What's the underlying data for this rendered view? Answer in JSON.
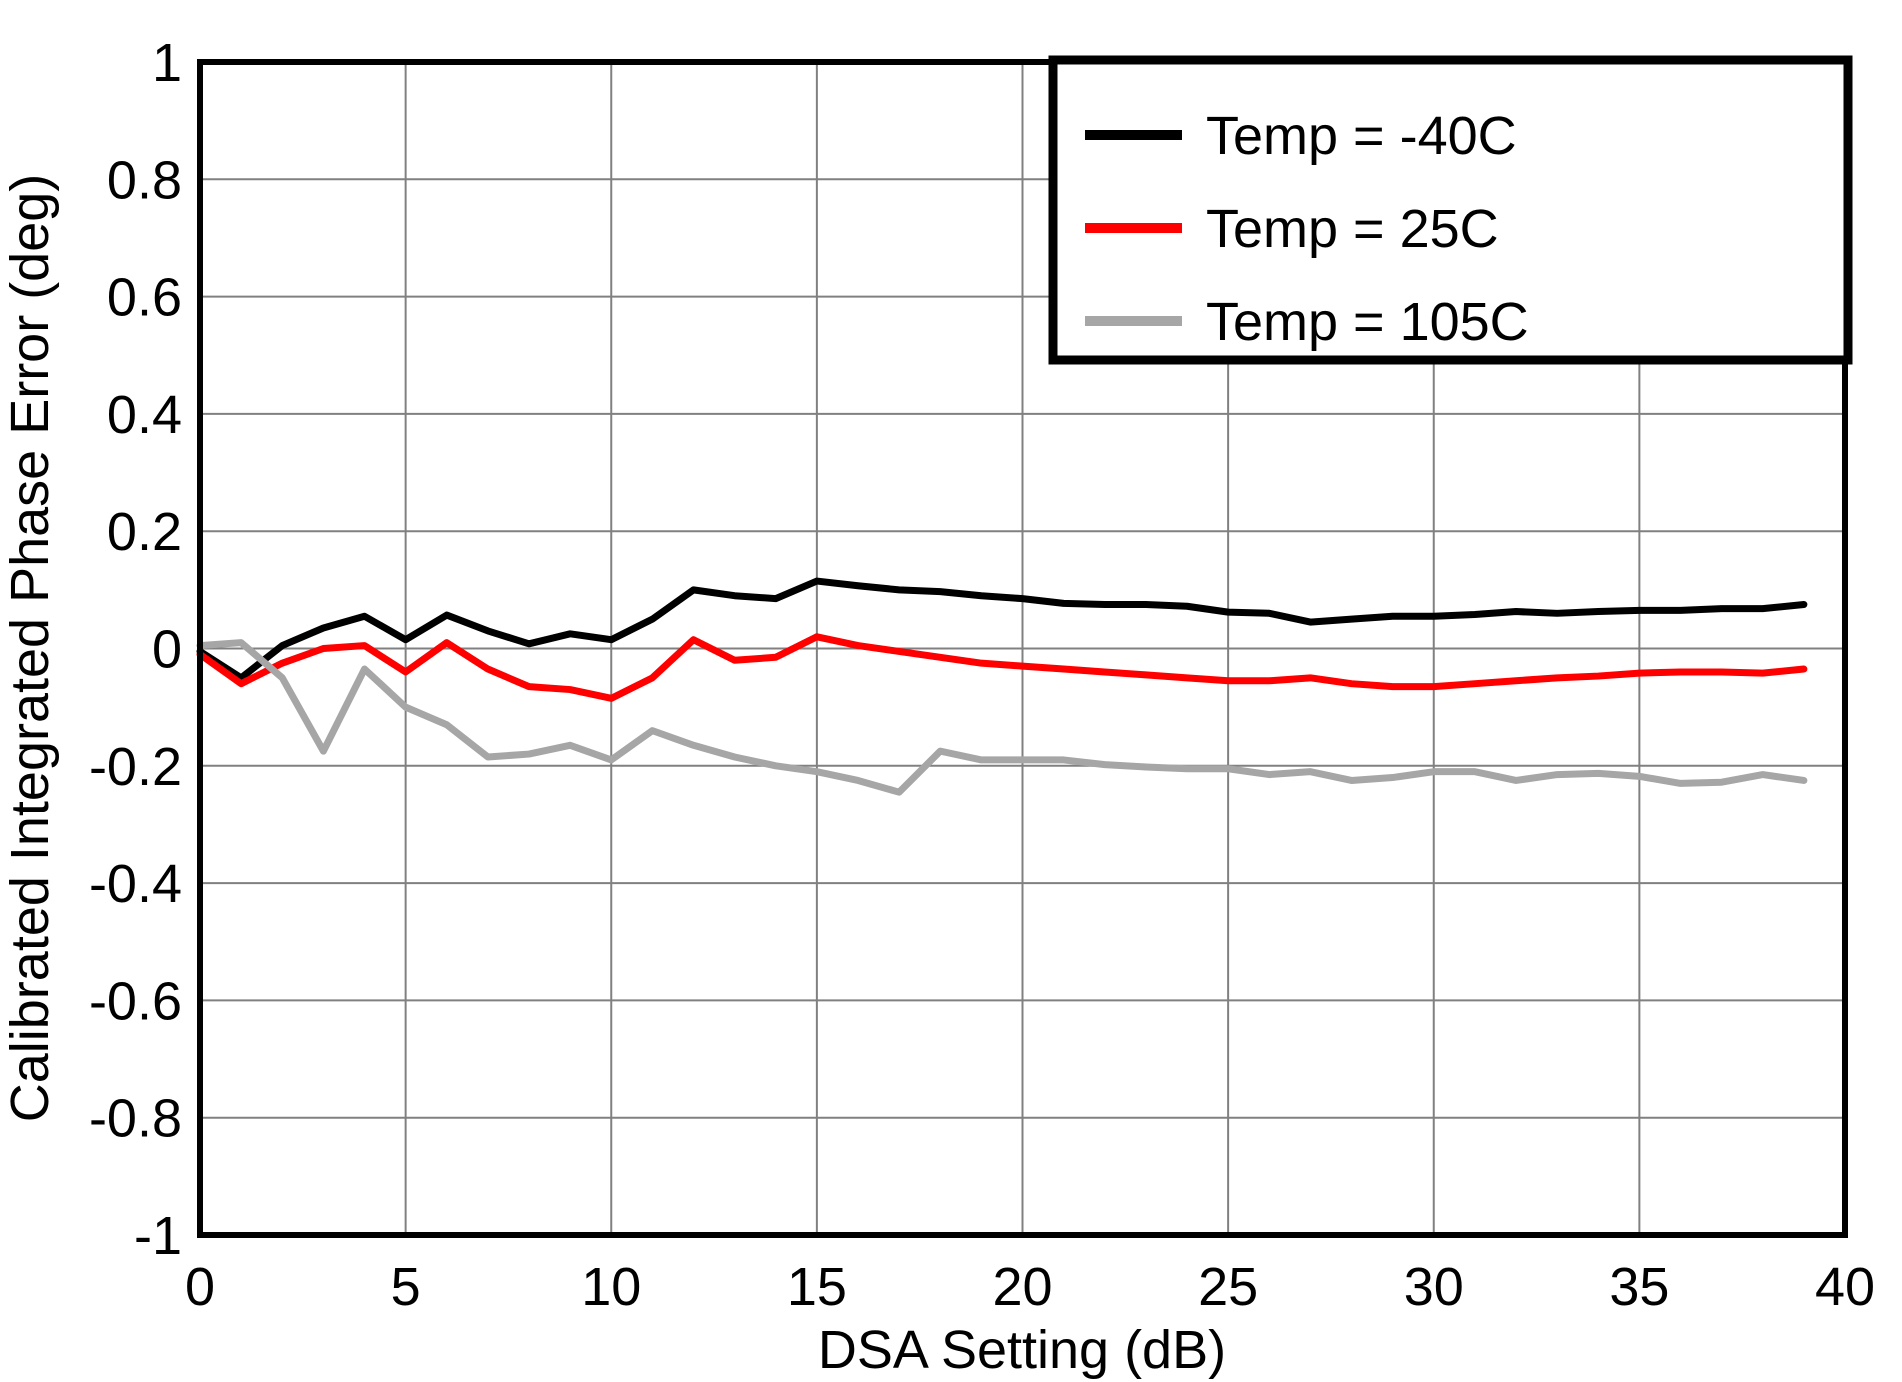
{
  "chart_data": {
    "type": "line",
    "title": "",
    "xlabel": "DSA Setting (dB)",
    "ylabel": "Calibrated Integrated Phase Error (deg)",
    "xlim": [
      0,
      40
    ],
    "ylim": [
      -1,
      1
    ],
    "xticks": [
      0,
      5,
      10,
      15,
      20,
      25,
      30,
      35,
      40
    ],
    "yticks": [
      -1,
      -0.8,
      -0.6,
      -0.4,
      -0.2,
      0,
      0.2,
      0.4,
      0.6,
      0.8,
      1
    ],
    "grid": true,
    "grid_color": "#808080",
    "border_color": "#000000",
    "legend_position": "top-right",
    "x": [
      0,
      1,
      2,
      3,
      4,
      5,
      6,
      7,
      8,
      9,
      10,
      11,
      12,
      13,
      14,
      15,
      16,
      17,
      18,
      19,
      20,
      21,
      22,
      23,
      24,
      25,
      26,
      27,
      28,
      29,
      30,
      31,
      32,
      33,
      34,
      35,
      36,
      37,
      38,
      39
    ],
    "series": [
      {
        "name": "Temp = -40C",
        "color": "#000000",
        "values": [
          -0.005,
          -0.05,
          0.005,
          0.035,
          0.055,
          0.015,
          0.057,
          0.03,
          0.008,
          0.025,
          0.015,
          0.05,
          0.1,
          0.09,
          0.085,
          0.115,
          0.107,
          0.1,
          0.097,
          0.09,
          0.085,
          0.077,
          0.075,
          0.075,
          0.072,
          0.062,
          0.06,
          0.045,
          0.05,
          0.055,
          0.055,
          0.058,
          0.063,
          0.06,
          0.063,
          0.065,
          0.065,
          0.068,
          0.068,
          0.075
        ]
      },
      {
        "name": "Temp = 25C",
        "color": "#ff0000",
        "values": [
          -0.01,
          -0.06,
          -0.025,
          0.0,
          0.005,
          -0.04,
          0.01,
          -0.035,
          -0.065,
          -0.07,
          -0.085,
          -0.05,
          0.015,
          -0.02,
          -0.015,
          0.02,
          0.005,
          -0.005,
          -0.015,
          -0.025,
          -0.03,
          -0.035,
          -0.04,
          -0.045,
          -0.05,
          -0.055,
          -0.055,
          -0.05,
          -0.06,
          -0.065,
          -0.065,
          -0.06,
          -0.055,
          -0.05,
          -0.047,
          -0.042,
          -0.04,
          -0.04,
          -0.042,
          -0.035
        ]
      },
      {
        "name": "Temp = 105C",
        "color": "#a6a6a6",
        "values": [
          0.005,
          0.01,
          -0.05,
          -0.175,
          -0.035,
          -0.1,
          -0.13,
          -0.185,
          -0.18,
          -0.165,
          -0.19,
          -0.14,
          -0.165,
          -0.185,
          -0.2,
          -0.21,
          -0.225,
          -0.245,
          -0.175,
          -0.19,
          -0.19,
          -0.19,
          -0.198,
          -0.202,
          -0.205,
          -0.205,
          -0.215,
          -0.21,
          -0.225,
          -0.22,
          -0.21,
          -0.21,
          -0.225,
          -0.215,
          -0.213,
          -0.218,
          -0.23,
          -0.228,
          -0.215,
          -0.225
        ]
      }
    ]
  }
}
